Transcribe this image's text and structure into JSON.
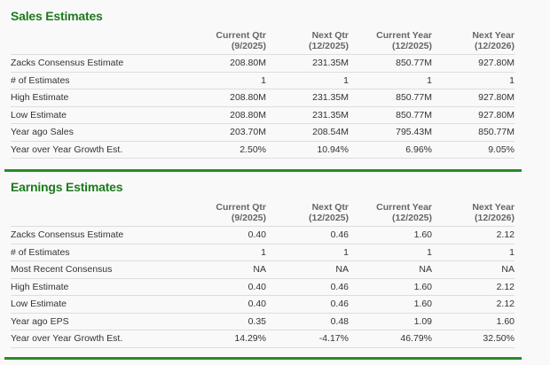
{
  "columns": [
    {
      "label": "Current Qtr",
      "period": "(9/2025)"
    },
    {
      "label": "Next Qtr",
      "period": "(12/2025)"
    },
    {
      "label": "Current Year",
      "period": "(12/2025)"
    },
    {
      "label": "Next Year",
      "period": "(12/2026)"
    }
  ],
  "sales": {
    "title": "Sales Estimates",
    "rows": [
      {
        "label": "Zacks Consensus Estimate",
        "values": [
          "208.80M",
          "231.35M",
          "850.77M",
          "927.80M"
        ]
      },
      {
        "label": "# of Estimates",
        "values": [
          "1",
          "1",
          "1",
          "1"
        ]
      },
      {
        "label": "High Estimate",
        "values": [
          "208.80M",
          "231.35M",
          "850.77M",
          "927.80M"
        ]
      },
      {
        "label": "Low Estimate",
        "values": [
          "208.80M",
          "231.35M",
          "850.77M",
          "927.80M"
        ]
      },
      {
        "label": "Year ago Sales",
        "values": [
          "203.70M",
          "208.54M",
          "795.43M",
          "850.77M"
        ]
      },
      {
        "label": "Year over Year Growth Est.",
        "values": [
          "2.50%",
          "10.94%",
          "6.96%",
          "9.05%"
        ]
      }
    ]
  },
  "earnings": {
    "title": "Earnings Estimates",
    "rows": [
      {
        "label": "Zacks Consensus Estimate",
        "values": [
          "0.40",
          "0.46",
          "1.60",
          "2.12"
        ]
      },
      {
        "label": "# of Estimates",
        "values": [
          "1",
          "1",
          "1",
          "1"
        ]
      },
      {
        "label": "Most Recent Consensus",
        "values": [
          "NA",
          "NA",
          "NA",
          "NA"
        ]
      },
      {
        "label": "High Estimate",
        "values": [
          "0.40",
          "0.46",
          "1.60",
          "2.12"
        ]
      },
      {
        "label": "Low Estimate",
        "values": [
          "0.40",
          "0.46",
          "1.60",
          "2.12"
        ]
      },
      {
        "label": "Year ago EPS",
        "values": [
          "0.35",
          "0.48",
          "1.09",
          "1.60"
        ]
      },
      {
        "label": "Year over Year Growth Est.",
        "values": [
          "14.29%",
          "-4.17%",
          "46.79%",
          "32.50%"
        ]
      }
    ]
  },
  "colors": {
    "accent": "#1d7a1d",
    "divider": "#2a8a2a"
  }
}
